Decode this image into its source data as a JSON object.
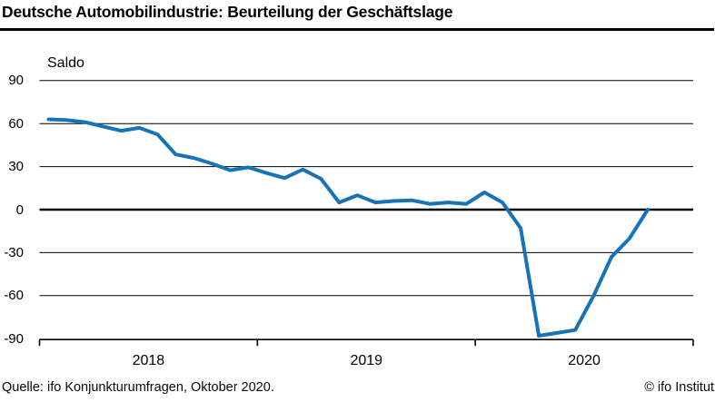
{
  "header": {
    "title": "Deutsche Automobilindustrie: Beurteilung der Geschäftslage"
  },
  "footer": {
    "source": "Quelle: ifo Konjunkturumfragen, Oktober 2020.",
    "copyright": "© ifo Institut"
  },
  "colors": {
    "line": "#1673b8",
    "grid": "#000000",
    "text": "#000000"
  },
  "chart_data": {
    "type": "line",
    "title": "Deutsche Automobilindustrie: Beurteilung der Geschäftslage",
    "ylabel": "Saldo",
    "xlabel": "",
    "ylim": [
      -90,
      90
    ],
    "y_ticks": [
      90,
      60,
      30,
      0,
      -30,
      -60,
      -90
    ],
    "x_tick_labels": [
      "2018",
      "2019",
      "2020"
    ],
    "x_axis_span": [
      "2018-01",
      "2021-01"
    ],
    "grid": "horizontal",
    "zero_line": true,
    "legend": "none",
    "series": [
      {
        "name": "Beurteilung der Geschäftslage (Saldo)",
        "color": "#1673b8",
        "x": [
          "2018-01",
          "2018-02",
          "2018-03",
          "2018-04",
          "2018-05",
          "2018-06",
          "2018-07",
          "2018-08",
          "2018-09",
          "2018-10",
          "2018-11",
          "2018-12",
          "2019-01",
          "2019-02",
          "2019-03",
          "2019-04",
          "2019-05",
          "2019-06",
          "2019-07",
          "2019-08",
          "2019-09",
          "2019-10",
          "2019-11",
          "2019-12",
          "2020-01",
          "2020-02",
          "2020-03",
          "2020-04",
          "2020-05",
          "2020-06",
          "2020-07",
          "2020-08",
          "2020-09",
          "2020-10"
        ],
        "values": [
          63,
          62.5,
          61,
          58,
          55,
          57,
          52.5,
          38.5,
          36,
          32,
          27.5,
          29.5,
          25.5,
          22,
          28,
          21.5,
          5,
          10,
          5,
          6,
          6.5,
          4,
          5,
          4,
          12,
          5,
          -13,
          -88,
          -86,
          -84,
          -60.5,
          -33,
          -20,
          0
        ]
      }
    ]
  }
}
